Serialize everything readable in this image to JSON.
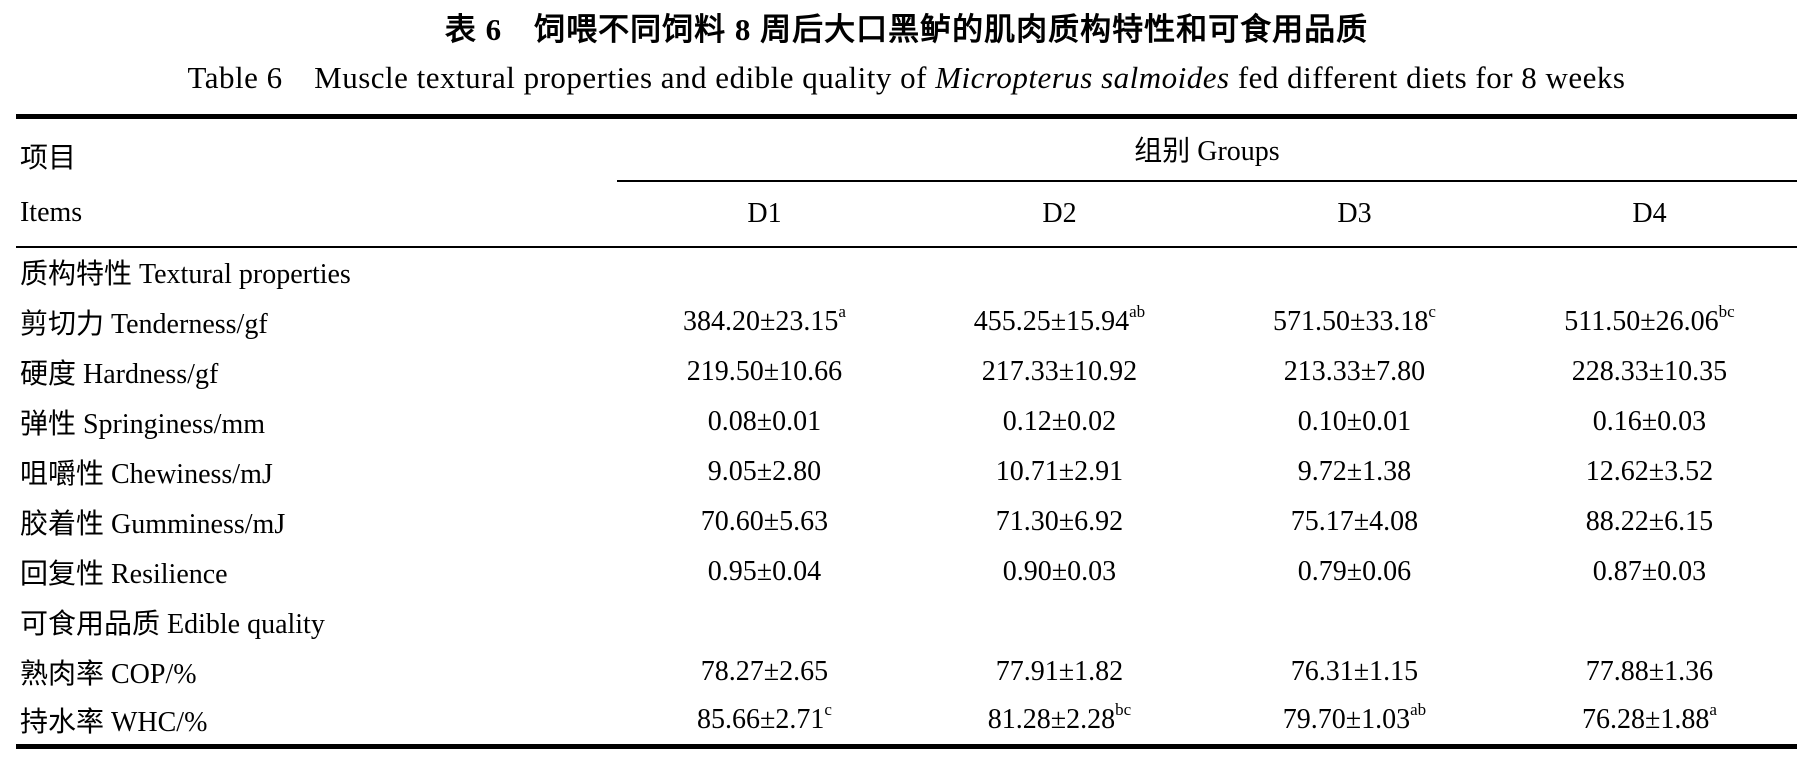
{
  "title_zh": "表 6　饲喂不同饲料 8 周后大口黑鲈的肌肉质构特性和可食用品质",
  "subtitle": {
    "prefix": "Table 6　Muscle textural properties and edible quality of ",
    "species_italic": "Micropterus salmoides",
    "suffix": " fed different diets for 8 weeks"
  },
  "table": {
    "items_header_zh": "项目",
    "items_header_en": "Items",
    "groups_header": "组别 Groups",
    "group_columns": [
      "D1",
      "D2",
      "D3",
      "D4"
    ],
    "rows": [
      {
        "label": "质构特性 Textural properties",
        "section": true,
        "cells": []
      },
      {
        "label": "剪切力 Tenderness/gf",
        "section": false,
        "cells": [
          {
            "text": "384.20±23.15",
            "sup": "a"
          },
          {
            "text": "455.25±15.94",
            "sup": "ab"
          },
          {
            "text": "571.50±33.18",
            "sup": "c"
          },
          {
            "text": "511.50±26.06",
            "sup": "bc"
          }
        ]
      },
      {
        "label": "硬度 Hardness/gf",
        "section": false,
        "cells": [
          {
            "text": "219.50±10.66",
            "sup": ""
          },
          {
            "text": "217.33±10.92",
            "sup": ""
          },
          {
            "text": "213.33±7.80",
            "sup": ""
          },
          {
            "text": "228.33±10.35",
            "sup": ""
          }
        ]
      },
      {
        "label": "弹性 Springiness/mm",
        "section": false,
        "cells": [
          {
            "text": "0.08±0.01",
            "sup": ""
          },
          {
            "text": "0.12±0.02",
            "sup": ""
          },
          {
            "text": "0.10±0.01",
            "sup": ""
          },
          {
            "text": "0.16±0.03",
            "sup": ""
          }
        ]
      },
      {
        "label": "咀嚼性 Chewiness/mJ",
        "section": false,
        "cells": [
          {
            "text": "9.05±2.80",
            "sup": ""
          },
          {
            "text": "10.71±2.91",
            "sup": ""
          },
          {
            "text": "9.72±1.38",
            "sup": ""
          },
          {
            "text": "12.62±3.52",
            "sup": ""
          }
        ]
      },
      {
        "label": "胶着性 Gumminess/mJ",
        "section": false,
        "cells": [
          {
            "text": "70.60±5.63",
            "sup": ""
          },
          {
            "text": "71.30±6.92",
            "sup": ""
          },
          {
            "text": "75.17±4.08",
            "sup": ""
          },
          {
            "text": "88.22±6.15",
            "sup": ""
          }
        ]
      },
      {
        "label": "回复性 Resilience",
        "section": false,
        "cells": [
          {
            "text": "0.95±0.04",
            "sup": ""
          },
          {
            "text": "0.90±0.03",
            "sup": ""
          },
          {
            "text": "0.79±0.06",
            "sup": ""
          },
          {
            "text": "0.87±0.03",
            "sup": ""
          }
        ]
      },
      {
        "label": "可食用品质 Edible quality",
        "section": true,
        "cells": []
      },
      {
        "label": "熟肉率 COP/%",
        "section": false,
        "cells": [
          {
            "text": "78.27±2.65",
            "sup": ""
          },
          {
            "text": "77.91±1.82",
            "sup": ""
          },
          {
            "text": "76.31±1.15",
            "sup": ""
          },
          {
            "text": "77.88±1.36",
            "sup": ""
          }
        ]
      },
      {
        "label": "持水率 WHC/%",
        "section": false,
        "cells": [
          {
            "text": "85.66±2.71",
            "sup": "c"
          },
          {
            "text": "81.28±2.28",
            "sup": "bc"
          },
          {
            "text": "79.70±1.03",
            "sup": "ab"
          },
          {
            "text": "76.28±1.88",
            "sup": "a"
          }
        ]
      }
    ]
  }
}
